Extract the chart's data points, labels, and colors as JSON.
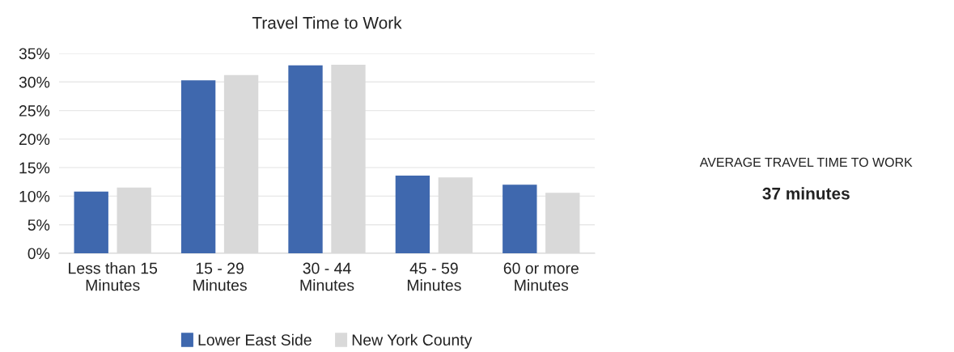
{
  "chart_data": [
    {
      "type": "bar",
      "title": "Travel Time to Work",
      "categories": [
        "Less than 15\nMinutes",
        "15 - 29\nMinutes",
        "30 - 44\nMinutes",
        "45 - 59\nMinutes",
        "60 or more\nMinutes"
      ],
      "series": [
        {
          "name": "Lower East Side",
          "color": "#3f68ae",
          "values": [
            10.8,
            30.3,
            32.9,
            13.6,
            12.0
          ]
        },
        {
          "name": "New York County",
          "color": "#d9d9d9",
          "values": [
            11.5,
            31.2,
            33.0,
            13.3,
            10.6
          ]
        }
      ],
      "ylim": [
        0,
        35
      ],
      "yticks": [
        {
          "value": 0,
          "label": "0%"
        },
        {
          "value": 5,
          "label": "5%"
        },
        {
          "value": 10,
          "label": "10%"
        },
        {
          "value": 15,
          "label": "15%"
        },
        {
          "value": 20,
          "label": "20%"
        },
        {
          "value": 25,
          "label": "25%"
        },
        {
          "value": 30,
          "label": "30%"
        },
        {
          "value": 35,
          "label": "35%"
        }
      ],
      "grid": "y",
      "legend": "bottom"
    },
    {
      "type": "other",
      "title": "AVERAGE TRAVEL TIME TO WORK",
      "annotations": [
        "37 minutes"
      ]
    }
  ]
}
